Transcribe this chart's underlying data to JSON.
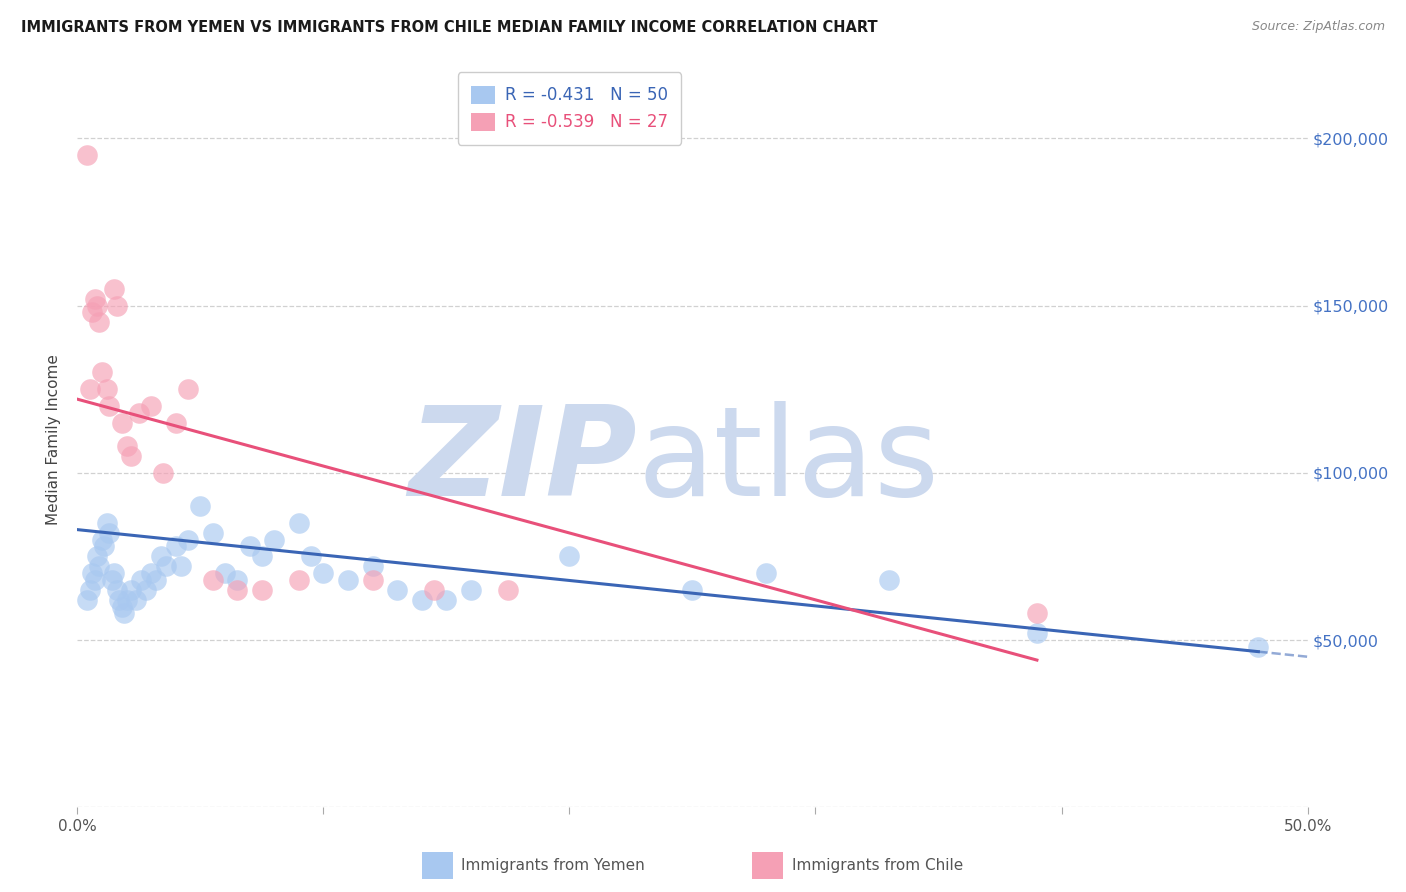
{
  "title": "IMMIGRANTS FROM YEMEN VS IMMIGRANTS FROM CHILE MEDIAN FAMILY INCOME CORRELATION CHART",
  "source": "Source: ZipAtlas.com",
  "ylabel": "Median Family Income",
  "xlim": [
    0.0,
    0.5
  ],
  "ylim": [
    0,
    220000
  ],
  "background_color": "#ffffff",
  "grid_color": "#cccccc",
  "watermark_zip_color": "#ccd9ee",
  "watermark_atlas_color": "#ccd9ee",
  "yemen_color": "#a8c8f0",
  "yemen_line_color": "#3a65b5",
  "chile_color": "#f5a0b5",
  "chile_line_color": "#e8507a",
  "legend_R_yemen": "-0.431",
  "legend_N_yemen": "50",
  "legend_R_chile": "-0.539",
  "legend_N_chile": "27",
  "yemen_x": [
    0.004,
    0.005,
    0.006,
    0.007,
    0.008,
    0.009,
    0.01,
    0.011,
    0.012,
    0.013,
    0.014,
    0.015,
    0.016,
    0.017,
    0.018,
    0.019,
    0.02,
    0.022,
    0.024,
    0.026,
    0.028,
    0.03,
    0.032,
    0.034,
    0.036,
    0.04,
    0.042,
    0.045,
    0.05,
    0.055,
    0.06,
    0.065,
    0.07,
    0.075,
    0.08,
    0.09,
    0.095,
    0.1,
    0.11,
    0.12,
    0.13,
    0.14,
    0.15,
    0.16,
    0.2,
    0.25,
    0.28,
    0.33,
    0.39,
    0.48
  ],
  "yemen_y": [
    62000,
    65000,
    70000,
    68000,
    75000,
    72000,
    80000,
    78000,
    85000,
    82000,
    68000,
    70000,
    65000,
    62000,
    60000,
    58000,
    62000,
    65000,
    62000,
    68000,
    65000,
    70000,
    68000,
    75000,
    72000,
    78000,
    72000,
    80000,
    90000,
    82000,
    70000,
    68000,
    78000,
    75000,
    80000,
    85000,
    75000,
    70000,
    68000,
    72000,
    65000,
    62000,
    62000,
    65000,
    75000,
    65000,
    70000,
    68000,
    52000,
    48000
  ],
  "chile_x": [
    0.004,
    0.005,
    0.006,
    0.007,
    0.008,
    0.009,
    0.01,
    0.012,
    0.013,
    0.015,
    0.016,
    0.018,
    0.02,
    0.022,
    0.025,
    0.03,
    0.035,
    0.04,
    0.045,
    0.055,
    0.065,
    0.075,
    0.09,
    0.12,
    0.145,
    0.175,
    0.39
  ],
  "chile_y": [
    195000,
    125000,
    148000,
    152000,
    150000,
    145000,
    130000,
    125000,
    120000,
    155000,
    150000,
    115000,
    108000,
    105000,
    118000,
    120000,
    100000,
    115000,
    125000,
    68000,
    65000,
    65000,
    68000,
    68000,
    65000,
    65000,
    58000
  ]
}
